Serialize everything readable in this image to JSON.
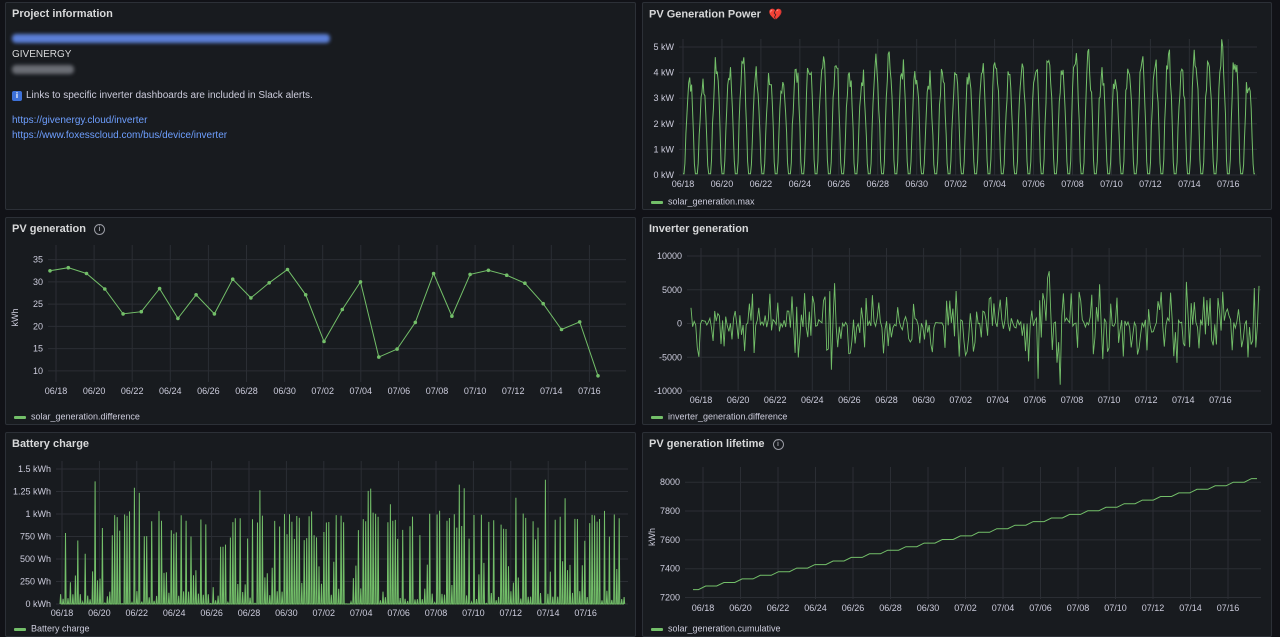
{
  "colors": {
    "series": "#73bf69",
    "link": "#6e9fff",
    "panel_bg": "#181b1f",
    "page_bg": "#111217",
    "grid": "#2b2e34"
  },
  "project_info": {
    "title": "Project information",
    "brand": "GIVENERGY",
    "note_icon": "info-square-icon",
    "note": "Links to specific inverter dashboards are included in Slack alerts.",
    "links": [
      "https://givenergy.cloud/inverter",
      "https://www.foxesscloud.com/bus/device/inverter"
    ]
  },
  "panels": {
    "pv_power": {
      "title": "PV Generation Power",
      "icon": "broken-heart-icon",
      "legend": "solar_generation.max"
    },
    "pv_generation": {
      "title": "PV generation",
      "icon": "info-icon",
      "legend": "solar_generation.difference"
    },
    "inverter_generation": {
      "title": "Inverter generation",
      "legend": "inverter_generation.difference"
    },
    "battery_charge": {
      "title": "Battery charge",
      "legend": "Battery charge"
    },
    "pv_lifetime": {
      "title": "PV generation lifetime",
      "icon": "info-icon",
      "legend": "solar_generation.cumulative"
    }
  },
  "chart_data": [
    {
      "id": "pv_power",
      "type": "line",
      "x_ticks": [
        "06/18",
        "06/20",
        "06/22",
        "06/24",
        "06/26",
        "06/28",
        "06/30",
        "07/02",
        "07/04",
        "07/06",
        "07/08",
        "07/10",
        "07/12",
        "07/14",
        "07/16"
      ],
      "y_ticks": [
        "0 kW",
        "1 kW",
        "2 kW",
        "3 kW",
        "4 kW",
        "5 kW"
      ],
      "ylim": [
        0,
        5.5
      ],
      "unit": "kW",
      "series": [
        {
          "name": "solar_generation.max",
          "daily_peaks": [
            3.9,
            3.7,
            4.4,
            4.2,
            4.6,
            3.9,
            4.0,
            3.9,
            4.3,
            4.6,
            4.9,
            4.7,
            4.2,
            4.0,
            4.4,
            4.5,
            4.3,
            4.1,
            3.9,
            4.0,
            4.3,
            4.2,
            4.4,
            4.8,
            3.9,
            4.4,
            4.5,
            4.9,
            4.4,
            5.1,
            4.6,
            4.2,
            4.1,
            4.6,
            4.5,
            4.4,
            4.9,
            4.3,
            4.7,
            4.4,
            5.2,
            4.9,
            3.9
          ],
          "values": [
            {
              "t": "06/17",
              "v": 3.9
            },
            {
              "t": "06/18",
              "v": 4.4
            },
            {
              "t": "06/19",
              "v": 4.6
            },
            {
              "t": "06/20",
              "v": 4.0
            },
            {
              "t": "06/21",
              "v": 4.3
            },
            {
              "t": "06/22",
              "v": 4.9
            },
            {
              "t": "06/23",
              "v": 4.2
            },
            {
              "t": "06/24",
              "v": 4.4
            },
            {
              "t": "06/25",
              "v": 4.3
            },
            {
              "t": "06/26",
              "v": 3.9
            },
            {
              "t": "06/27",
              "v": 4.3
            },
            {
              "t": "06/28",
              "v": 4.4
            },
            {
              "t": "06/29",
              "v": 3.9
            },
            {
              "t": "06/30",
              "v": 4.5
            },
            {
              "t": "07/01",
              "v": 4.4
            },
            {
              "t": "07/02",
              "v": 5.1
            },
            {
              "t": "07/03",
              "v": 4.2
            },
            {
              "t": "07/04",
              "v": 4.6
            },
            {
              "t": "07/05",
              "v": 4.4
            },
            {
              "t": "07/06",
              "v": 4.3
            },
            {
              "t": "07/07",
              "v": 4.4
            },
            {
              "t": "07/08",
              "v": 5.2
            },
            {
              "t": "07/09",
              "v": 4.9
            },
            {
              "t": "07/10",
              "v": 3.9
            }
          ]
        }
      ]
    },
    {
      "id": "pv_generation",
      "type": "line",
      "x_ticks": [
        "06/18",
        "06/20",
        "06/22",
        "06/24",
        "06/26",
        "06/28",
        "06/30",
        "07/02",
        "07/04",
        "07/06",
        "07/08",
        "07/10",
        "07/12",
        "07/14",
        "07/16"
      ],
      "y_ticks": [
        "10",
        "15",
        "20",
        "25",
        "30",
        "35"
      ],
      "ylabel": "kWh",
      "ylim": [
        7,
        36
      ],
      "series": [
        {
          "name": "solar_generation.difference",
          "x": [
            "06/17",
            "06/18",
            "06/19",
            "06/20",
            "06/21",
            "06/22",
            "06/23",
            "06/24",
            "06/25",
            "06/26",
            "06/27",
            "06/28",
            "06/29",
            "06/30",
            "07/01",
            "07/02",
            "07/03",
            "07/04",
            "07/05",
            "07/06",
            "07/07",
            "07/08",
            "07/09",
            "07/10",
            "07/11",
            "07/12",
            "07/13",
            "07/14",
            "07/15",
            "07/16",
            "07/17"
          ],
          "values": [
            32.5,
            33.2,
            31.9,
            28.4,
            22.8,
            23.3,
            28.5,
            21.8,
            27.1,
            22.8,
            30.6,
            26.4,
            29.8,
            32.8,
            27.1,
            16.6,
            23.8,
            30.0,
            13.1,
            14.9,
            20.9,
            31.9,
            22.3,
            31.7,
            32.6,
            31.5,
            29.7,
            25.1,
            19.3,
            21.0,
            8.9
          ]
        }
      ]
    },
    {
      "id": "inverter_generation",
      "type": "line",
      "x_ticks": [
        "06/18",
        "06/20",
        "06/22",
        "06/24",
        "06/26",
        "06/28",
        "06/30",
        "07/02",
        "07/04",
        "07/06",
        "07/08",
        "07/10",
        "07/12",
        "07/14",
        "07/16"
      ],
      "y_ticks": [
        "-10000",
        "-5000",
        "0",
        "5000",
        "10000"
      ],
      "ylim": [
        -11000,
        10500
      ],
      "series": [
        {
          "name": "inverter_generation.difference",
          "extremes": [
            4800,
            -4200,
            3500,
            -3000,
            5000,
            -4500,
            6000,
            -5200,
            5500,
            -6000,
            7000,
            -5000,
            5000,
            -4000,
            4500,
            -3500,
            3800,
            -3000,
            4200,
            -3500,
            4800,
            -4000,
            5200,
            -4500,
            6000,
            -5500,
            8000,
            -9000,
            5000,
            -4500,
            6000,
            -5500,
            5000,
            -4800,
            5500,
            -5000,
            6500,
            -6000,
            4500,
            -4000,
            5000,
            -4200,
            6500,
            -7000
          ]
        }
      ]
    },
    {
      "id": "battery_charge",
      "type": "bar",
      "x_ticks": [
        "06/18",
        "06/20",
        "06/22",
        "06/24",
        "06/26",
        "06/28",
        "06/30",
        "07/02",
        "07/04",
        "07/06",
        "07/08",
        "07/10",
        "07/12",
        "07/14",
        "07/16"
      ],
      "y_ticks": [
        "0 kWh",
        "250 Wh",
        "500 Wh",
        "750 Wh",
        "1 kWh",
        "1.25 kWh",
        "1.5 kWh"
      ],
      "ylim": [
        0,
        1.6
      ],
      "unit": "kWh",
      "series": [
        {
          "name": "Battery charge",
          "peaks": [
            1.0,
            0.6,
            1.4,
            0.9,
            1.0,
            1.3,
            0.8,
            1.0,
            0.9,
            1.0,
            1.2,
            1.0,
            0.7,
            1.0,
            1.0,
            1.3,
            0.9,
            1.0,
            1.0,
            0.8,
            1.0,
            1.0,
            0.9,
            1.3,
            1.0,
            1.2,
            1.0,
            0.9,
            1.0,
            1.0,
            1.4,
            1.0,
            1.0,
            0.9,
            1.3,
            1.0,
            1.4,
            1.0,
            1.2,
            1.0,
            1.0,
            1.3,
            1.0
          ]
        }
      ]
    },
    {
      "id": "pv_lifetime",
      "type": "line",
      "x_ticks": [
        "06/18",
        "06/20",
        "06/22",
        "06/24",
        "06/26",
        "06/28",
        "06/30",
        "07/02",
        "07/04",
        "07/06",
        "07/08",
        "07/10",
        "07/12",
        "07/14",
        "07/16"
      ],
      "y_ticks": [
        "7200",
        "7400",
        "7600",
        "7800",
        "8000"
      ],
      "ylabel": "kWh",
      "ylim": [
        7180,
        8060
      ],
      "series": [
        {
          "name": "solar_generation.cumulative",
          "start": 7255,
          "end": 8025
        }
      ]
    }
  ]
}
